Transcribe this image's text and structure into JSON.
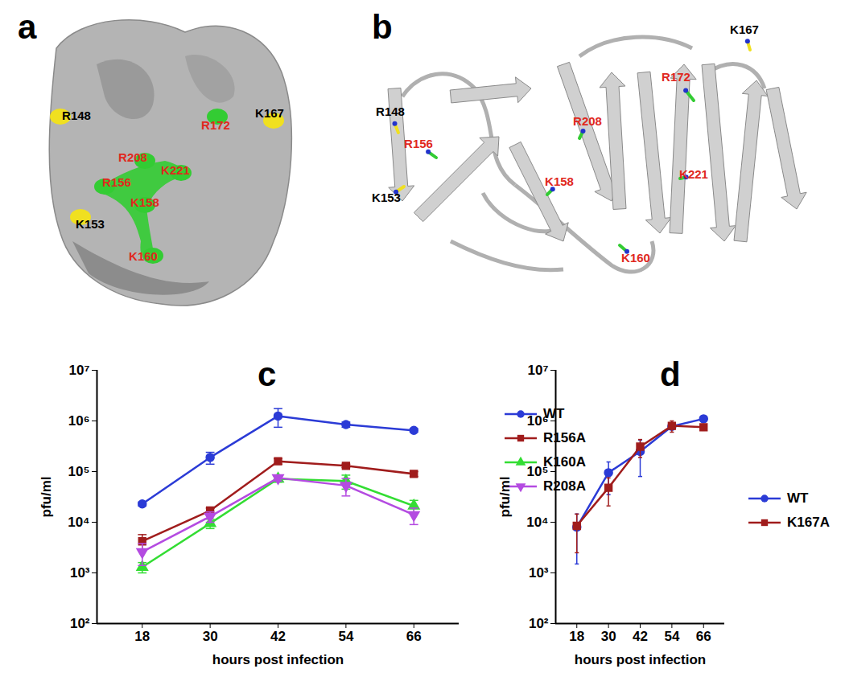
{
  "chart_data": [
    {
      "type": "line",
      "title": "c",
      "xlabel": "hours post infection",
      "ylabel": "pfu/ml",
      "x": [
        18,
        30,
        42,
        54,
        66
      ],
      "xlim": [
        10,
        74
      ],
      "xticks": [
        18,
        30,
        42,
        54,
        66
      ],
      "log": "y",
      "ylim": [
        100,
        10000000
      ],
      "yticks": [
        {
          "value": 100,
          "label": "10²"
        },
        {
          "value": 1000,
          "label": "10³"
        },
        {
          "value": 10000,
          "label": "10⁴"
        },
        {
          "value": 100000,
          "label": "10⁵"
        },
        {
          "value": 1000000,
          "label": "10⁶"
        },
        {
          "value": 10000000,
          "label": "10⁷"
        }
      ],
      "legend": "right",
      "series": [
        {
          "name": "WT",
          "color": "#2b3bd6",
          "marker": "circle",
          "values": [
            23000,
            190000,
            1250000,
            850000,
            650000
          ],
          "errors": [
            2000,
            50000,
            500000,
            100000,
            50000
          ]
        },
        {
          "name": "R156A",
          "color": "#a01c1c",
          "marker": "square",
          "values": [
            4200,
            17000,
            160000,
            130000,
            90000
          ],
          "errors": [
            1500,
            2000,
            20000,
            10000,
            10000
          ]
        },
        {
          "name": "K160A",
          "color": "#33dd33",
          "marker": "triangle",
          "values": [
            1300,
            9500,
            72000,
            65000,
            21000
          ],
          "errors": [
            300,
            2000,
            10000,
            20000,
            6000
          ]
        },
        {
          "name": "R208A",
          "color": "#b44be1",
          "marker": "triangle-down",
          "values": [
            2600,
            13000,
            75000,
            53000,
            14000
          ],
          "errors": [
            1200,
            3000,
            10000,
            20000,
            5000
          ]
        }
      ]
    },
    {
      "type": "line",
      "title": "d",
      "xlabel": "hours post infection",
      "ylabel": "pfu/ml",
      "x": [
        18,
        30,
        42,
        54,
        66
      ],
      "xlim": [
        10,
        74
      ],
      "xticks": [
        18,
        30,
        42,
        54,
        66
      ],
      "log": "y",
      "ylim": [
        100,
        10000000
      ],
      "yticks": [
        {
          "value": 100,
          "label": "10²"
        },
        {
          "value": 1000,
          "label": "10³"
        },
        {
          "value": 10000,
          "label": "10⁴"
        },
        {
          "value": 100000,
          "label": "10⁵"
        },
        {
          "value": 1000000,
          "label": "10⁶"
        },
        {
          "value": 10000000,
          "label": "10⁷"
        }
      ],
      "legend": "right",
      "series": [
        {
          "name": "WT",
          "color": "#2b3bd6",
          "marker": "circle",
          "values": [
            8000,
            95000,
            250000,
            780000,
            1100000
          ],
          "errors": [
            6500,
            60000,
            170000,
            100000,
            150000
          ]
        },
        {
          "name": "K167A",
          "color": "#a01c1c",
          "marker": "square",
          "values": [
            8500,
            48000,
            310000,
            800000,
            750000
          ],
          "errors": [
            6000,
            27000,
            120000,
            200000,
            100000
          ]
        }
      ]
    }
  ],
  "structures": [
    {
      "panel": "a",
      "type": "surface",
      "residues": [
        {
          "label": "R148",
          "color": "#f0e020",
          "label_color": "#000000"
        },
        {
          "label": "K167",
          "color": "#f0e020",
          "label_color": "#000000"
        },
        {
          "label": "R172",
          "color": "#33cc33",
          "label_color": "#e0281e"
        },
        {
          "label": "R208",
          "color": "#33cc33",
          "label_color": "#e0281e"
        },
        {
          "label": "K221",
          "color": "#33cc33",
          "label_color": "#e0281e"
        },
        {
          "label": "R156",
          "color": "#33cc33",
          "label_color": "#e0281e"
        },
        {
          "label": "K158",
          "color": "#33cc33",
          "label_color": "#e0281e"
        },
        {
          "label": "K153",
          "color": "#f0e020",
          "label_color": "#000000"
        },
        {
          "label": "K160",
          "color": "#33cc33",
          "label_color": "#e0281e"
        }
      ]
    },
    {
      "panel": "b",
      "type": "cartoon",
      "residues": [
        {
          "label": "R148",
          "color": "#f0e020",
          "label_color": "#000000"
        },
        {
          "label": "K167",
          "color": "#f0e020",
          "label_color": "#000000"
        },
        {
          "label": "R172",
          "color": "#33cc33",
          "label_color": "#e0281e"
        },
        {
          "label": "R208",
          "color": "#33cc33",
          "label_color": "#e0281e"
        },
        {
          "label": "R156",
          "color": "#33cc33",
          "label_color": "#e0281e"
        },
        {
          "label": "K221",
          "color": "#33cc33",
          "label_color": "#e0281e"
        },
        {
          "label": "K158",
          "color": "#33cc33",
          "label_color": "#e0281e"
        },
        {
          "label": "K153",
          "color": "#f0e020",
          "label_color": "#000000"
        },
        {
          "label": "K160",
          "color": "#33cc33",
          "label_color": "#e0281e"
        }
      ]
    }
  ]
}
